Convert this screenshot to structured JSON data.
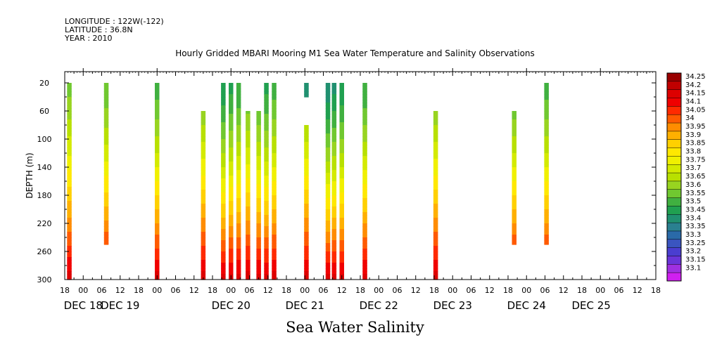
{
  "header": {
    "longitude": "LONGITUDE : 122W(-122)",
    "latitude": "LATITUDE : 36.8N",
    "year": "YEAR : 2010"
  },
  "chart_data": {
    "type": "heatmap",
    "title": "Hourly Gridded MBARI Mooring M1 Sea Water Temperature and Salinity Observations",
    "xlabel": "Sea Water Salinity",
    "ylabel": "DEPTH (m)",
    "x_unit": "hours from DEC 17 18:00, 2010",
    "xlim": [
      0,
      192
    ],
    "ylim": [
      300,
      0
    ],
    "y_ticks": [
      20,
      60,
      100,
      140,
      180,
      220,
      260,
      300
    ],
    "x_hour_labels": [
      "18",
      "00",
      "06",
      "12",
      "18",
      "00",
      "06",
      "12",
      "18",
      "00",
      "06",
      "12",
      "18",
      "00",
      "06",
      "12",
      "18",
      "00",
      "06",
      "12",
      "18",
      "00",
      "06",
      "12",
      "18",
      "00",
      "06",
      "12",
      "18",
      "00",
      "06",
      "12",
      "18"
    ],
    "x_day_labels": [
      {
        "label": "DEC 18",
        "hour": 6
      },
      {
        "label": "DEC 19",
        "hour": 18
      },
      {
        "label": "DEC 20",
        "hour": 54
      },
      {
        "label": "DEC 21",
        "hour": 78
      },
      {
        "label": "DEC 22",
        "hour": 102
      },
      {
        "label": "DEC 23",
        "hour": 126
      },
      {
        "label": "DEC 24",
        "hour": 150
      },
      {
        "label": "DEC 25",
        "hour": 171
      }
    ],
    "colorbar": {
      "levels": [
        "34.25",
        "34.2",
        "34.15",
        "34.1",
        "34.05",
        "34",
        "33.95",
        "33.9",
        "33.85",
        "33.8",
        "33.75",
        "33.7",
        "33.65",
        "33.6",
        "33.55",
        "33.5",
        "33.45",
        "33.4",
        "33.35",
        "33.3",
        "33.25",
        "33.2",
        "33.15",
        "33.1"
      ],
      "colors": [
        "#990000",
        "#c00000",
        "#dd0000",
        "#f00000",
        "#ff2a00",
        "#ff5a00",
        "#ff8c00",
        "#ffb000",
        "#ffd000",
        "#ffe800",
        "#f0f000",
        "#d4ea00",
        "#b8e000",
        "#98d420",
        "#70c830",
        "#40b040",
        "#20a050",
        "#209070",
        "#2a8090",
        "#2a6aa8",
        "#3a55c0",
        "#4a3ed0",
        "#6a35d8",
        "#a030e0",
        "#d020f0"
      ]
    },
    "profiles": [
      {
        "hour": 1.5,
        "top": 20,
        "bottom": 300,
        "surface": 33.58
      },
      {
        "hour": 13.5,
        "top": 20,
        "bottom": 250,
        "surface": 33.55
      },
      {
        "hour": 30.0,
        "top": 20,
        "bottom": 300,
        "surface": 33.52
      },
      {
        "hour": 45.0,
        "top": 60,
        "bottom": 300,
        "surface": 33.56
      },
      {
        "hour": 51.5,
        "top": 20,
        "bottom": 300,
        "surface": 33.45
      },
      {
        "hour": 54.0,
        "top": 20,
        "bottom": 300,
        "surface": 33.48
      },
      {
        "hour": 56.5,
        "top": 20,
        "bottom": 300,
        "surface": 33.5
      },
      {
        "hour": 59.5,
        "top": 60,
        "bottom": 300,
        "surface": 33.54
      },
      {
        "hour": 63.0,
        "top": 60,
        "bottom": 300,
        "surface": 33.5
      },
      {
        "hour": 65.5,
        "top": 20,
        "bottom": 300,
        "surface": 33.48
      },
      {
        "hour": 68.0,
        "top": 20,
        "bottom": 300,
        "surface": 33.52
      },
      {
        "hour": 78.5,
        "top": 20,
        "bottom": 40,
        "surface": 33.42
      },
      {
        "hour": 78.5,
        "top": 80,
        "bottom": 300,
        "surface": 33.56
      },
      {
        "hour": 85.5,
        "top": 20,
        "bottom": 300,
        "surface": 33.41
      },
      {
        "hour": 87.5,
        "top": 20,
        "bottom": 300,
        "surface": 33.43
      },
      {
        "hour": 90.0,
        "top": 20,
        "bottom": 300,
        "surface": 33.45
      },
      {
        "hour": 97.5,
        "top": 20,
        "bottom": 300,
        "surface": 33.5
      },
      {
        "hour": 120.5,
        "top": 60,
        "bottom": 300,
        "surface": 33.56
      },
      {
        "hour": 146.0,
        "top": 60,
        "bottom": 250,
        "surface": 33.52
      },
      {
        "hour": 156.5,
        "top": 20,
        "bottom": 250,
        "surface": 33.52
      }
    ]
  }
}
